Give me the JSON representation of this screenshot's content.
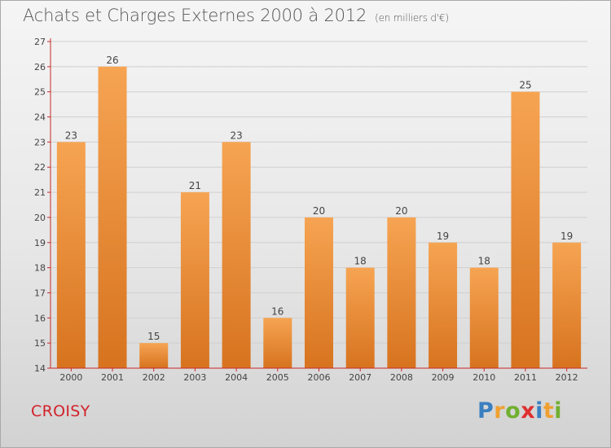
{
  "title": "Achats et Charges Externes 2000 à 2012",
  "subtitle": "(en milliers d'€)",
  "commune": "CROISY",
  "brand": {
    "text": "Proxiti",
    "letters": [
      {
        "ch": "P",
        "color": "#3a7fc0"
      },
      {
        "ch": "r",
        "color": "#f0a030"
      },
      {
        "ch": "o",
        "color": "#70b030"
      },
      {
        "ch": "x",
        "color": "#e03030"
      },
      {
        "ch": "i",
        "color": "#3a7fc0"
      },
      {
        "ch": "t",
        "color": "#f0a030"
      },
      {
        "ch": "i",
        "color": "#70b030"
      }
    ]
  },
  "colors": {
    "bar_top": "#f6a452",
    "bar_bottom": "#d7731f",
    "axis": "#c82828",
    "grid": "#d0d0d0",
    "text": "#444444"
  },
  "chart_data": {
    "type": "bar",
    "title": "Achats et Charges Externes 2000 à 2012",
    "subtitle": "(en milliers d'€)",
    "categories": [
      "2000",
      "2001",
      "2002",
      "2003",
      "2004",
      "2005",
      "2006",
      "2007",
      "2008",
      "2009",
      "2010",
      "2011",
      "2012"
    ],
    "values": [
      23,
      26,
      15,
      21,
      23,
      16,
      20,
      18,
      20,
      19,
      18,
      25,
      19
    ],
    "ylim": [
      14,
      27
    ],
    "yticks": [
      14,
      15,
      16,
      17,
      18,
      19,
      20,
      21,
      22,
      23,
      24,
      25,
      26,
      27
    ],
    "grid": true,
    "data_labels": true
  }
}
